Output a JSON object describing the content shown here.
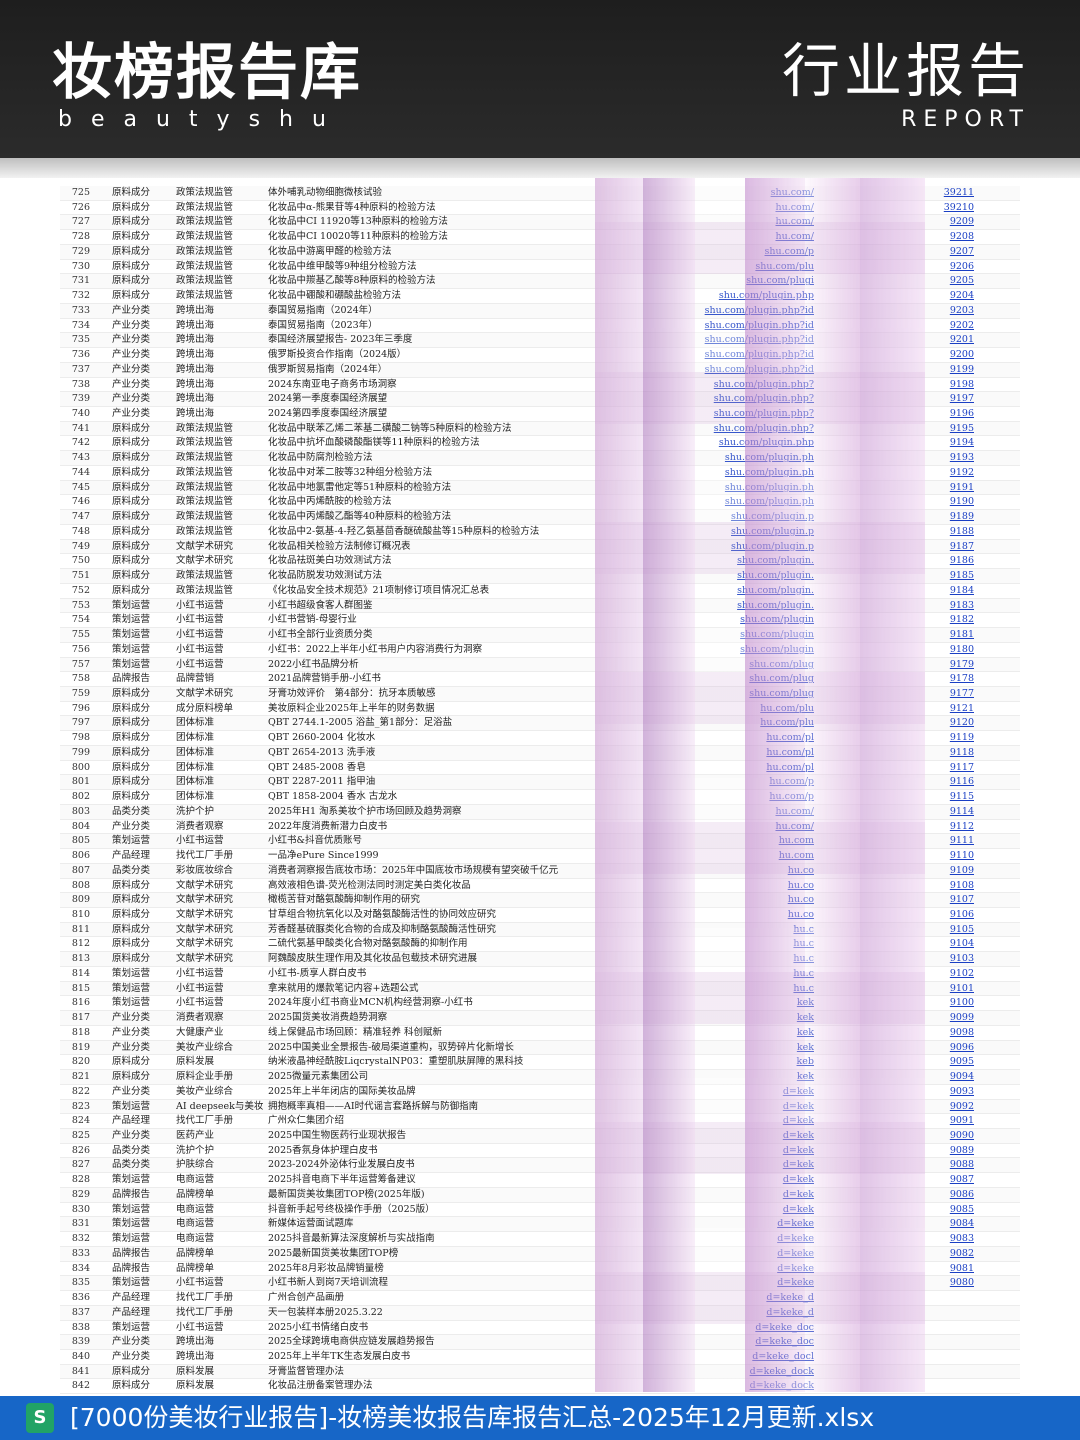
{
  "header": {
    "brand_title": "妆榜报告库",
    "brand_subtitle": "beautyshu",
    "report_title": "行业报告",
    "report_subtitle": "REPORT"
  },
  "table": {
    "rows": [
      {
        "num": "725",
        "cat": "原料成分",
        "sub": "政策法规监管",
        "title": "体外哺乳动物细胞微核试验",
        "link": "shu.com/",
        "id": "39211"
      },
      {
        "num": "726",
        "cat": "原料成分",
        "sub": "政策法规监管",
        "title": "化妆品中α-熊果苷等4种原料的检验方法",
        "link": "hu.com/",
        "id": "39210"
      },
      {
        "num": "727",
        "cat": "原料成分",
        "sub": "政策法规监管",
        "title": "化妆品中CI 11920等13种原料的检验方法",
        "link": "hu.com/",
        "id": "9209"
      },
      {
        "num": "728",
        "cat": "原料成分",
        "sub": "政策法规监管",
        "title": "化妆品中CI 10020等11种原料的检验方法",
        "link": "hu.com/",
        "id": "9208"
      },
      {
        "num": "729",
        "cat": "原料成分",
        "sub": "政策法规监管",
        "title": "化妆品中游离甲醛的检验方法",
        "link": "shu.com/p",
        "id": "9207"
      },
      {
        "num": "730",
        "cat": "原料成分",
        "sub": "政策法规监管",
        "title": "化妆品中维甲酸等9种组分检验方法",
        "link": "shu.com/plu",
        "id": "9206"
      },
      {
        "num": "731",
        "cat": "原料成分",
        "sub": "政策法规监管",
        "title": "化妆品中羰基乙酸等8种原料的检验方法",
        "link": "shu.com/plugi",
        "id": "9205"
      },
      {
        "num": "732",
        "cat": "原料成分",
        "sub": "政策法规监管",
        "title": "化妆品中硼酸和硼酸盐检验方法",
        "link": "shu.com/plugin.php",
        "id": "9204"
      },
      {
        "num": "733",
        "cat": "产业分类",
        "sub": "跨境出海",
        "title": "泰国贸易指南（2024年）",
        "link": "shu.com/plugin.php?id",
        "id": "9203"
      },
      {
        "num": "734",
        "cat": "产业分类",
        "sub": "跨境出海",
        "title": "泰国贸易指南（2023年）",
        "link": "shu.com/plugin.php?id",
        "id": "9202"
      },
      {
        "num": "735",
        "cat": "产业分类",
        "sub": "跨境出海",
        "title": "泰国经济展望报告- 2023年三季度",
        "link": "shu.com/plugin.php?id",
        "id": "9201"
      },
      {
        "num": "736",
        "cat": "产业分类",
        "sub": "跨境出海",
        "title": "俄罗斯投资合作指南（2024版）",
        "link": "shu.com/plugin.php?id",
        "id": "9200"
      },
      {
        "num": "737",
        "cat": "产业分类",
        "sub": "跨境出海",
        "title": "俄罗斯贸易指南（2024年）",
        "link": "shu.com/plugin.php?id",
        "id": "9199"
      },
      {
        "num": "738",
        "cat": "产业分类",
        "sub": "跨境出海",
        "title": "2024东南亚电子商务市场洞察",
        "link": "shu.com/plugin.php?",
        "id": "9198"
      },
      {
        "num": "739",
        "cat": "产业分类",
        "sub": "跨境出海",
        "title": "2024第一季度泰国经济展望",
        "link": "shu.com/plugin.php?",
        "id": "9197"
      },
      {
        "num": "740",
        "cat": "产业分类",
        "sub": "跨境出海",
        "title": "2024第四季度泰国经济展望",
        "link": "shu.com/plugin.php?",
        "id": "9196"
      },
      {
        "num": "741",
        "cat": "原料成分",
        "sub": "政策法规监管",
        "title": "化妆品中联苯乙烯二苯基二磺酸二钠等5种原料的检验方法",
        "link": "shu.com/plugin.php?",
        "id": "9195"
      },
      {
        "num": "742",
        "cat": "原料成分",
        "sub": "政策法规监管",
        "title": "化妆品中抗坏血酸磷酸酯镁等11种原料的检验方法",
        "link": "shu.com/plugin.php",
        "id": "9194"
      },
      {
        "num": "743",
        "cat": "原料成分",
        "sub": "政策法规监管",
        "title": "化妆品中防腐剂检验方法",
        "link": "shu.com/plugin.ph",
        "id": "9193"
      },
      {
        "num": "744",
        "cat": "原料成分",
        "sub": "政策法规监管",
        "title": "化妆品中对苯二胺等32种组分检验方法",
        "link": "shu.com/plugin.ph",
        "id": "9192"
      },
      {
        "num": "745",
        "cat": "原料成分",
        "sub": "政策法规监管",
        "title": "化妆品中地氯雷他定等51种原料的检验方法",
        "link": "shu.com/plugin.ph",
        "id": "9191"
      },
      {
        "num": "746",
        "cat": "原料成分",
        "sub": "政策法规监管",
        "title": "化妆品中丙烯酰胺的检验方法",
        "link": "shu.com/plugin.ph",
        "id": "9190"
      },
      {
        "num": "747",
        "cat": "原料成分",
        "sub": "政策法规监管",
        "title": "化妆品中丙烯酸乙酯等40种原料的检验方法",
        "link": "shu.com/plugin.p",
        "id": "9189"
      },
      {
        "num": "748",
        "cat": "原料成分",
        "sub": "政策法规监管",
        "title": "化妆品中2-氨基-4-羟乙氨基茴香醚硫酸盐等15种原料的检验方法",
        "link": "shu.com/plugin.p",
        "id": "9188"
      },
      {
        "num": "749",
        "cat": "原料成分",
        "sub": "文献学术研究",
        "title": "化妆品相关检验方法制修订概况表",
        "link": "shu.com/plugin.p",
        "id": "9187"
      },
      {
        "num": "750",
        "cat": "原料成分",
        "sub": "文献学术研究",
        "title": "化妆品祛斑美白功效测试方法",
        "link": "shu.com/plugin.",
        "id": "9186"
      },
      {
        "num": "751",
        "cat": "原料成分",
        "sub": "政策法规监管",
        "title": "化妆品防脱发功效测试方法",
        "link": "shu.com/plugin.",
        "id": "9185"
      },
      {
        "num": "752",
        "cat": "原料成分",
        "sub": "政策法规监管",
        "title": "《化妆品安全技术规范》21项制修订项目情况汇总表",
        "link": "shu.com/plugin.",
        "id": "9184"
      },
      {
        "num": "753",
        "cat": "策划运营",
        "sub": "小红书运营",
        "title": "小红书超级食客人群图鉴",
        "link": "shu.com/plugin.",
        "id": "9183"
      },
      {
        "num": "754",
        "cat": "策划运营",
        "sub": "小红书运营",
        "title": "小红书营销-母婴行业",
        "link": "shu.com/plugin",
        "id": "9182"
      },
      {
        "num": "755",
        "cat": "策划运营",
        "sub": "小红书运营",
        "title": "小红书全部行业资质分类",
        "link": "shu.com/plugin",
        "id": "9181"
      },
      {
        "num": "756",
        "cat": "策划运营",
        "sub": "小红书运营",
        "title": "小红书：2022上半年小红书用户内容消费行为洞察",
        "link": "shu.com/plugin",
        "id": "9180"
      },
      {
        "num": "757",
        "cat": "策划运营",
        "sub": "小红书运营",
        "title": "2022小红书品牌分析",
        "link": "shu.com/plug",
        "id": "9179"
      },
      {
        "num": "758",
        "cat": "品牌报告",
        "sub": "品牌营销",
        "title": "2021品牌营销手册-小红书",
        "link": "shu.com/plug",
        "id": "9178"
      },
      {
        "num": "759",
        "cat": "原料成分",
        "sub": "文献学术研究",
        "title": "牙膏功效评价　第4部分：抗牙本质敏感",
        "link": "shu.com/plug",
        "id": "9177"
      },
      {
        "num": "796",
        "cat": "原料成分",
        "sub": "成分原料榜单",
        "title": "美妆原料企业2025年上半年的财务数据",
        "link": "hu.com/plu",
        "id": "9121"
      },
      {
        "num": "797",
        "cat": "原料成分",
        "sub": "团体标准",
        "title": "QBT 2744.1-2005 浴盐_第1部分：足浴盐",
        "link": "hu.com/plu",
        "id": "9120"
      },
      {
        "num": "798",
        "cat": "原料成分",
        "sub": "团体标准",
        "title": "QBT 2660-2004 化妆水",
        "link": "hu.com/pl",
        "id": "9119"
      },
      {
        "num": "799",
        "cat": "原料成分",
        "sub": "团体标准",
        "title": "QBT 2654-2013 洗手液",
        "link": "hu.com/pl",
        "id": "9118"
      },
      {
        "num": "800",
        "cat": "原料成分",
        "sub": "团体标准",
        "title": "QBT 2485-2008 香皂",
        "link": "hu.com/pl",
        "id": "9117"
      },
      {
        "num": "801",
        "cat": "原料成分",
        "sub": "团体标准",
        "title": "QBT 2287-2011 指甲油",
        "link": "hu.com/p",
        "id": "9116"
      },
      {
        "num": "802",
        "cat": "原料成分",
        "sub": "团体标准",
        "title": "QBT 1858-2004 香水 古龙水",
        "link": "hu.com/p",
        "id": "9115"
      },
      {
        "num": "803",
        "cat": "品类分类",
        "sub": "洗护个护",
        "title": "2025年H1 淘系美妆个护市场回顾及趋势洞察",
        "link": "hu.com/",
        "id": "9114"
      },
      {
        "num": "804",
        "cat": "产业分类",
        "sub": "消费者观察",
        "title": "2022年度消费新潜力白皮书",
        "link": "hu.com/",
        "id": "9112"
      },
      {
        "num": "805",
        "cat": "策划运营",
        "sub": "小红书运营",
        "title": "小红书&抖音优质账号",
        "link": "hu.com",
        "id": "9111"
      },
      {
        "num": "806",
        "cat": "产品经理",
        "sub": "找代工厂手册",
        "title": "一品净ePure Since1999",
        "link": "hu.com",
        "id": "9110"
      },
      {
        "num": "807",
        "cat": "品类分类",
        "sub": "彩妆底妆综合",
        "title": "消费者洞察报告底妆市场：2025年中国底妆市场规模有望突破千亿元",
        "link": "hu.co",
        "id": "9109"
      },
      {
        "num": "808",
        "cat": "原料成分",
        "sub": "文献学术研究",
        "title": "高效液相色谱-荧光检测法同时测定美白类化妆品",
        "link": "hu.co",
        "id": "9108"
      },
      {
        "num": "809",
        "cat": "原料成分",
        "sub": "文献学术研究",
        "title": "橄榄苦苷对酪氨酸酶抑制作用的研究",
        "link": "hu.co",
        "id": "9107"
      },
      {
        "num": "810",
        "cat": "原料成分",
        "sub": "文献学术研究",
        "title": "甘草组合物抗氧化以及对酪氨酸酶活性的协同效应研究",
        "link": "hu.co",
        "id": "9106"
      },
      {
        "num": "811",
        "cat": "原料成分",
        "sub": "文献学术研究",
        "title": "芳香醛基硫脲类化合物的合成及抑制酪氨酸酶活性研究",
        "link": "hu.c",
        "id": "9105"
      },
      {
        "num": "812",
        "cat": "原料成分",
        "sub": "文献学术研究",
        "title": "二硫代氨基甲酸类化合物对酪氨酸酶的抑制作用",
        "link": "hu.c",
        "id": "9104"
      },
      {
        "num": "813",
        "cat": "原料成分",
        "sub": "文献学术研究",
        "title": "阿魏酸皮肤生理作用及其化妆品包载技术研究进展",
        "link": "hu.c",
        "id": "9103"
      },
      {
        "num": "814",
        "cat": "策划运营",
        "sub": "小红书运营",
        "title": "小红书-质享人群白皮书",
        "link": "hu.c",
        "id": "9102"
      },
      {
        "num": "815",
        "cat": "策划运营",
        "sub": "小红书运营",
        "title": "拿来就用的爆款笔记内容+选题公式",
        "link": "hu.c",
        "id": "9101"
      },
      {
        "num": "816",
        "cat": "策划运营",
        "sub": "小红书运营",
        "title": "2024年度小红书商业MCN机构经营洞察-小红书",
        "link": "kek",
        "id": "9100"
      },
      {
        "num": "817",
        "cat": "产业分类",
        "sub": "消费者观察",
        "title": "2025国货美妆消费趋势洞察",
        "link": "kek",
        "id": "9099"
      },
      {
        "num": "818",
        "cat": "产业分类",
        "sub": "大健康产业",
        "title": "线上保健品市场回顾：精准轻养 科创赋新",
        "link": "kek",
        "id": "9098"
      },
      {
        "num": "819",
        "cat": "产业分类",
        "sub": "美妆产业综合",
        "title": "2025中国美业全景报告-破局渠道重构，驭势碎片化新增长",
        "link": "kek",
        "id": "9096"
      },
      {
        "num": "820",
        "cat": "原料成分",
        "sub": "原料发展",
        "title": "纳米液晶神经酰胺LiqcrystalNP03：重塑肌肤屏障的黑科技",
        "link": "keb",
        "id": "9095"
      },
      {
        "num": "821",
        "cat": "原料成分",
        "sub": "原料企业手册",
        "title": "2025微量元素集团公司",
        "link": "kek",
        "id": "9094"
      },
      {
        "num": "822",
        "cat": "产业分类",
        "sub": "美妆产业综合",
        "title": "2025年上半年闭店的国际美妆品牌",
        "link": "d=kek",
        "id": "9093"
      },
      {
        "num": "823",
        "cat": "策划运营",
        "sub": "AI deepseek与美妆",
        "title": "拥抱概率真相——AI时代谣言套路拆解与防御指南",
        "link": "d=kek",
        "id": "9092"
      },
      {
        "num": "824",
        "cat": "产品经理",
        "sub": "找代工厂手册",
        "title": "广州众仁集团介绍",
        "link": "d=kek",
        "id": "9091"
      },
      {
        "num": "825",
        "cat": "产业分类",
        "sub": "医药产业",
        "title": "2025中国生物医药行业现状报告",
        "link": "d=kek",
        "id": "9090"
      },
      {
        "num": "826",
        "cat": "品类分类",
        "sub": "洗护个护",
        "title": "2025香氛身体护理白皮书",
        "link": "d=kek",
        "id": "9089"
      },
      {
        "num": "827",
        "cat": "品类分类",
        "sub": "护肤综合",
        "title": "2023-2024外泌体行业发展白皮书",
        "link": "d=kek",
        "id": "9088"
      },
      {
        "num": "828",
        "cat": "策划运营",
        "sub": "电商运营",
        "title": "2025抖音电商下半年运营筹备建议",
        "link": "d=kek",
        "id": "9087"
      },
      {
        "num": "829",
        "cat": "品牌报告",
        "sub": "品牌榜单",
        "title": "最新国货美妆集团TOP榜(2025年版)",
        "link": "d=kek",
        "id": "9086"
      },
      {
        "num": "830",
        "cat": "策划运营",
        "sub": "电商运营",
        "title": "抖音新手起号终极操作手册（2025版）",
        "link": "d=kek",
        "id": "9085"
      },
      {
        "num": "831",
        "cat": "策划运营",
        "sub": "电商运营",
        "title": "新媒体运营面试题库",
        "link": "d=keke",
        "id": "9084"
      },
      {
        "num": "832",
        "cat": "策划运营",
        "sub": "电商运营",
        "title": "2025抖音最新算法深度解析与实战指南",
        "link": "d=keke",
        "id": "9083"
      },
      {
        "num": "833",
        "cat": "品牌报告",
        "sub": "品牌榜单",
        "title": "2025最新国货美妆集团TOP榜",
        "link": "d=keke",
        "id": "9082"
      },
      {
        "num": "834",
        "cat": "品牌报告",
        "sub": "品牌榜单",
        "title": "2025年8月彩妆品牌销量榜",
        "link": "d=keke",
        "id": "9081"
      },
      {
        "num": "835",
        "cat": "策划运营",
        "sub": "小红书运营",
        "title": "小红书新人到岗7天培训流程",
        "link": "d=keke",
        "id": "9080"
      },
      {
        "num": "836",
        "cat": "产品经理",
        "sub": "找代工厂手册",
        "title": "广州合创产品画册",
        "link": "d=keke_d",
        "id": ""
      },
      {
        "num": "837",
        "cat": "产品经理",
        "sub": "找代工厂手册",
        "title": "天一包装样本册2025.3.22",
        "link": "d=keke_d",
        "id": ""
      },
      {
        "num": "838",
        "cat": "策划运营",
        "sub": "小红书运营",
        "title": "2025小红书情绪白皮书",
        "link": "d=keke_doc",
        "id": ""
      },
      {
        "num": "839",
        "cat": "产业分类",
        "sub": "跨境出海",
        "title": "2025全球跨境电商供应链发展趋势报告",
        "link": "d=keke_doc",
        "id": ""
      },
      {
        "num": "840",
        "cat": "产业分类",
        "sub": "跨境出海",
        "title": "2025年上半年TK生态发展白皮书",
        "link": "d=keke_docl",
        "id": ""
      },
      {
        "num": "841",
        "cat": "原料成分",
        "sub": "原料发展",
        "title": "牙膏监督管理办法",
        "link": "d=keke_dock",
        "id": ""
      },
      {
        "num": "842",
        "cat": "原料成分",
        "sub": "原料发展",
        "title": "化妆品注册备案管理办法",
        "link": "d=keke_dock",
        "id": ""
      }
    ]
  },
  "footer": {
    "icon_letter": "S",
    "file_name": "[7000份美妆行业报告]-妆榜美妆报告库报告汇总-2025年12月更新.xlsx",
    "icon_color": "#21a366",
    "bar_color": "#1766c7"
  }
}
